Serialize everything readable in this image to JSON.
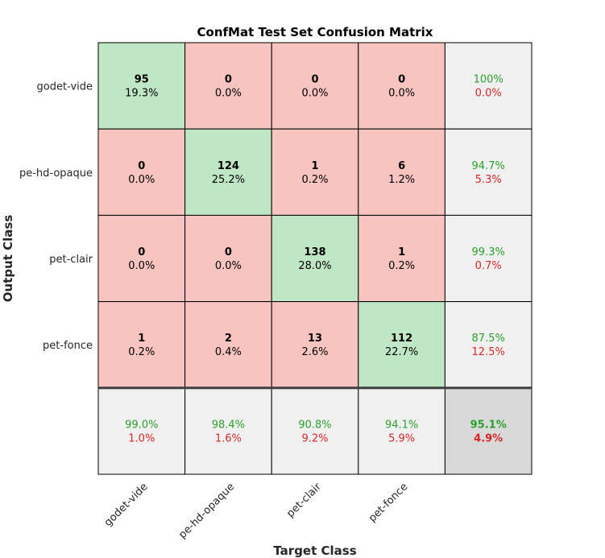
{
  "chart_data": {
    "type": "heatmap",
    "title": "ConfMat Test Set Confusion Matrix",
    "xlabel": "Target Class",
    "ylabel": "Output Class",
    "classes": [
      "godet-vide",
      "pe-hd-opaque",
      "pet-clair",
      "pet-fonce"
    ],
    "counts": [
      [
        95,
        0,
        0,
        0
      ],
      [
        0,
        124,
        1,
        6
      ],
      [
        0,
        0,
        138,
        1
      ],
      [
        1,
        2,
        13,
        112
      ]
    ],
    "percentages": [
      [
        "19.3%",
        "0.0%",
        "0.0%",
        "0.0%"
      ],
      [
        "0.0%",
        "25.2%",
        "0.2%",
        "1.2%"
      ],
      [
        "0.0%",
        "0.0%",
        "28.0%",
        "0.2%"
      ],
      [
        "0.2%",
        "0.4%",
        "2.6%",
        "22.7%"
      ]
    ],
    "row_summary": [
      {
        "correct": "100%",
        "incorrect": "0.0%"
      },
      {
        "correct": "94.7%",
        "incorrect": "5.3%"
      },
      {
        "correct": "99.3%",
        "incorrect": "0.7%"
      },
      {
        "correct": "87.5%",
        "incorrect": "12.5%"
      }
    ],
    "col_summary": [
      {
        "correct": "99.0%",
        "incorrect": "1.0%"
      },
      {
        "correct": "98.4%",
        "incorrect": "1.6%"
      },
      {
        "correct": "90.8%",
        "incorrect": "9.2%"
      },
      {
        "correct": "94.1%",
        "incorrect": "5.9%"
      }
    ],
    "overall": {
      "correct": "95.1%",
      "incorrect": "4.9%"
    },
    "colors": {
      "diagonal": "#bfe6c5",
      "off_diagonal": "#f7c4c0",
      "summary": "#f0f0f0",
      "overall": "#d9d9d9",
      "correct_text": "#2ca02c",
      "incorrect_text": "#d62728",
      "grid": "#000000"
    }
  }
}
